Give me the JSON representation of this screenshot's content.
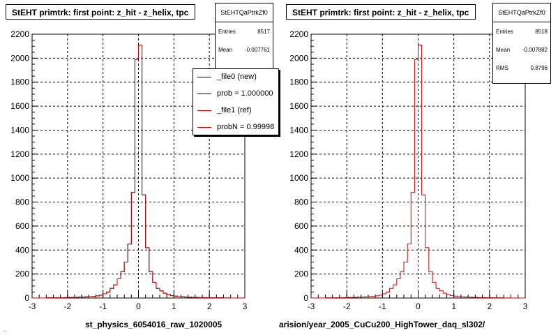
{
  "chart_data": [
    {
      "type": "histogram",
      "title": "StEHT primtrk: first point: z_hit - z_helix, tpc",
      "xlabel": "st_physics_6054016_raw_1020005",
      "ylabel": "",
      "xlim": [
        -3,
        3
      ],
      "ylim": [
        0,
        2200
      ],
      "xticks": [
        -3,
        -2,
        -1,
        0,
        1,
        2,
        3
      ],
      "yticks": [
        0,
        200,
        400,
        600,
        800,
        1000,
        1200,
        1400,
        1600,
        1800,
        2000,
        2200
      ],
      "grid": true,
      "stats": {
        "name": "StEHTQaPtrkZf0",
        "entries": "8517",
        "mean": "-0.007761",
        "rms": ""
      },
      "legend_entries": [
        "_file0 (new)",
        "prob = 1.000000",
        "_file1 (ref)",
        "probN = 0.99998"
      ],
      "bin_edges_start": -3.0,
      "bin_width": 0.1,
      "series": [
        {
          "name": "_file0 (new)",
          "color": "#000000",
          "values": [
            0,
            0,
            0,
            0,
            2,
            2,
            2,
            3,
            3,
            4,
            5,
            5,
            6,
            8,
            8,
            10,
            12,
            14,
            18,
            24,
            35,
            50,
            80,
            110,
            160,
            220,
            300,
            450,
            880,
            1990,
            2110,
            860,
            420,
            220,
            130,
            80,
            60,
            40,
            30,
            20,
            16,
            12,
            10,
            8,
            7,
            6,
            5,
            4,
            4,
            3,
            3,
            2,
            2,
            2,
            1,
            1,
            0,
            0,
            0,
            0
          ]
        },
        {
          "name": "_file1 (ref)",
          "color": "#cc0000",
          "values": [
            0,
            0,
            0,
            0,
            2,
            2,
            2,
            3,
            3,
            4,
            5,
            5,
            6,
            8,
            8,
            10,
            12,
            14,
            18,
            24,
            35,
            50,
            80,
            110,
            160,
            220,
            300,
            450,
            880,
            1990,
            2110,
            860,
            420,
            220,
            130,
            80,
            60,
            40,
            30,
            20,
            16,
            12,
            10,
            8,
            7,
            6,
            5,
            4,
            4,
            3,
            3,
            2,
            2,
            2,
            1,
            1,
            0,
            0,
            0,
            0
          ]
        }
      ]
    },
    {
      "type": "histogram",
      "title": "StEHT primtrk: first point: z_hit - z_helix, tpc",
      "xlabel": "arision/year_2005_CuCu200_HighTower_daq_sl302/",
      "ylabel": "",
      "xlim": [
        -3,
        3
      ],
      "ylim": [
        0,
        2200
      ],
      "xticks": [
        -3,
        -2,
        -1,
        0,
        1,
        2,
        3
      ],
      "yticks": [
        0,
        200,
        400,
        600,
        800,
        1000,
        1200,
        1400,
        1600,
        1800,
        2000,
        2200
      ],
      "grid": true,
      "stats": {
        "name": "StEHTQaPtrkZf0",
        "entries": "8518",
        "mean": "-0.007882",
        "rms": "0.8796"
      },
      "legend_entries": [],
      "bin_edges_start": -3.0,
      "bin_width": 0.1,
      "series": [
        {
          "name": "",
          "color": "#cc0000",
          "values": [
            0,
            0,
            0,
            0,
            2,
            2,
            2,
            3,
            3,
            4,
            5,
            5,
            6,
            8,
            8,
            10,
            12,
            14,
            18,
            24,
            35,
            50,
            80,
            110,
            160,
            220,
            300,
            450,
            880,
            1990,
            2110,
            860,
            420,
            220,
            130,
            80,
            60,
            40,
            30,
            20,
            16,
            12,
            10,
            8,
            7,
            6,
            5,
            4,
            4,
            3,
            3,
            2,
            2,
            2,
            1,
            1,
            0,
            0,
            0,
            0
          ]
        }
      ]
    }
  ],
  "stats_labels": {
    "entries": "Entries",
    "mean": "Mean",
    "rms": "RMS"
  },
  "footer_note": "..."
}
